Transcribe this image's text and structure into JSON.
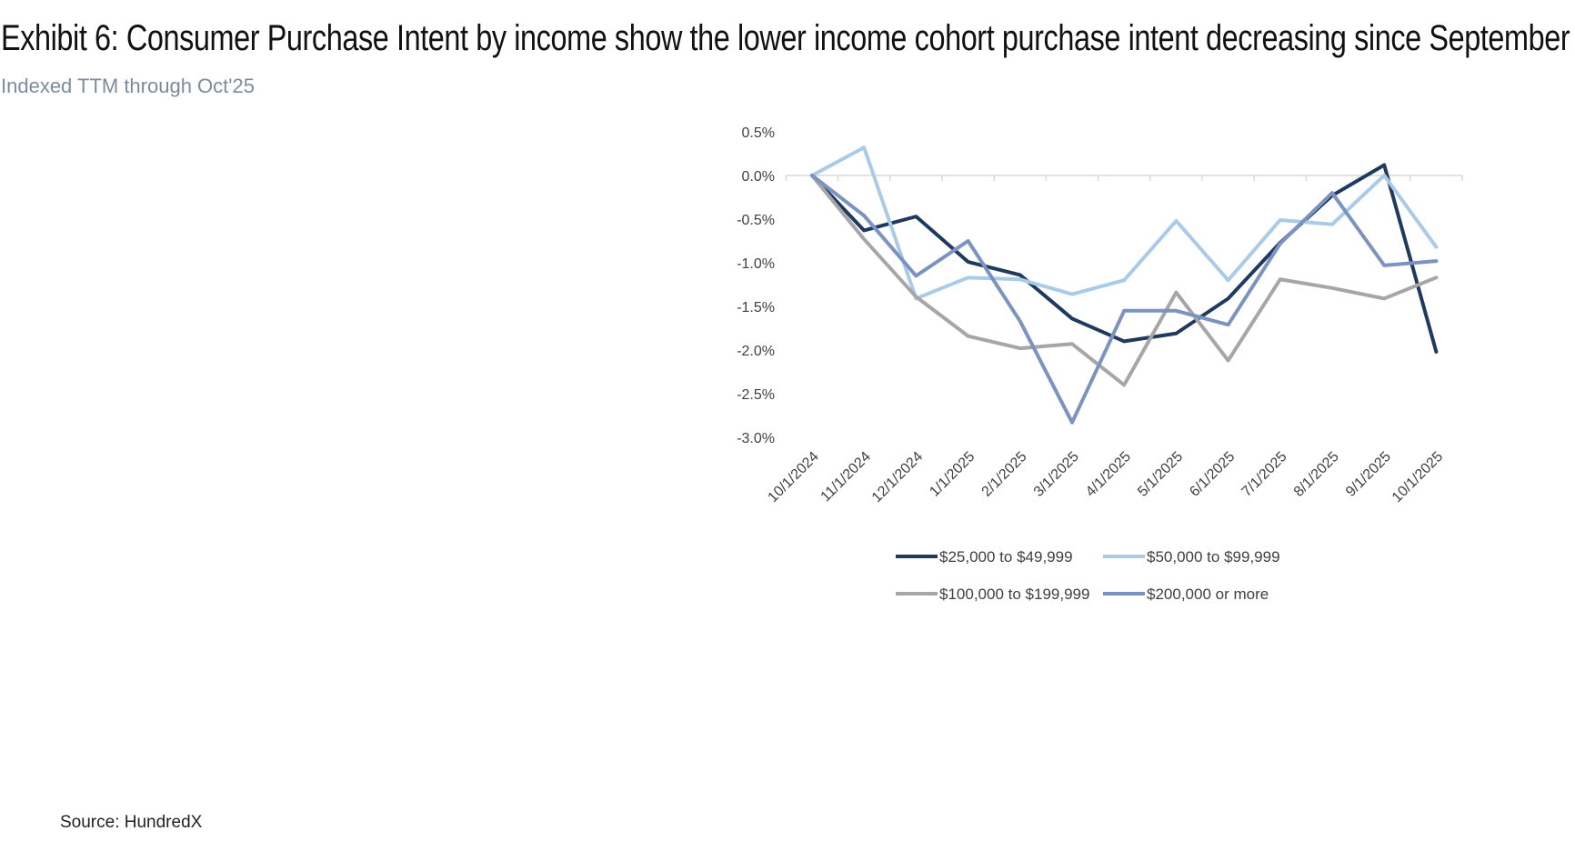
{
  "header": {
    "title": "Exhibit 6: Consumer Purchase Intent by income show the lower income cohort purchase intent decreasing since September",
    "subtitle": "Indexed TTM through Oct'25"
  },
  "footer": {
    "source": "Source: HundredX"
  },
  "chart_data": {
    "type": "line",
    "title": "",
    "xlabel": "",
    "ylabel": "",
    "categories": [
      "10/1/2024",
      "11/1/2024",
      "12/1/2024",
      "1/1/2025",
      "2/1/2025",
      "3/1/2025",
      "4/1/2025",
      "5/1/2025",
      "6/1/2025",
      "7/1/2025",
      "8/1/2025",
      "9/1/2025",
      "10/1/2025"
    ],
    "yticks": [
      "0.5%",
      "0.0%",
      "-0.5%",
      "-1.0%",
      "-1.5%",
      "-2.0%",
      "-2.5%",
      "-3.0%"
    ],
    "ylim": [
      -3.0,
      0.5
    ],
    "grid": false,
    "legend_position": "bottom",
    "series": [
      {
        "name": "$25,000 to $49,999",
        "color": "#1f3a5f",
        "values": [
          0,
          -0.63,
          -0.47,
          -0.99,
          -1.14,
          -1.64,
          -1.9,
          -1.81,
          -1.41,
          -0.77,
          -0.23,
          0.12,
          -2.02
        ]
      },
      {
        "name": "$50,000 to $99,999",
        "color": "#a9cbe8",
        "values": [
          0,
          0.32,
          -1.41,
          -1.17,
          -1.19,
          -1.36,
          -1.2,
          -0.52,
          -1.2,
          -0.51,
          -0.56,
          0.0,
          -0.82
        ]
      },
      {
        "name": "$100,000 to $199,999",
        "color": "#a6a6a6",
        "values": [
          0,
          -0.73,
          -1.39,
          -1.84,
          -1.98,
          -1.93,
          -2.4,
          -1.34,
          -2.12,
          -1.19,
          -1.29,
          -1.41,
          -1.17
        ]
      },
      {
        "name": "$200,000 or more",
        "color": "#7b93bf",
        "values": [
          0,
          -0.46,
          -1.15,
          -0.75,
          -1.67,
          -2.83,
          -1.55,
          -1.55,
          -1.71,
          -0.78,
          -0.2,
          -1.03,
          -0.98
        ]
      }
    ]
  }
}
